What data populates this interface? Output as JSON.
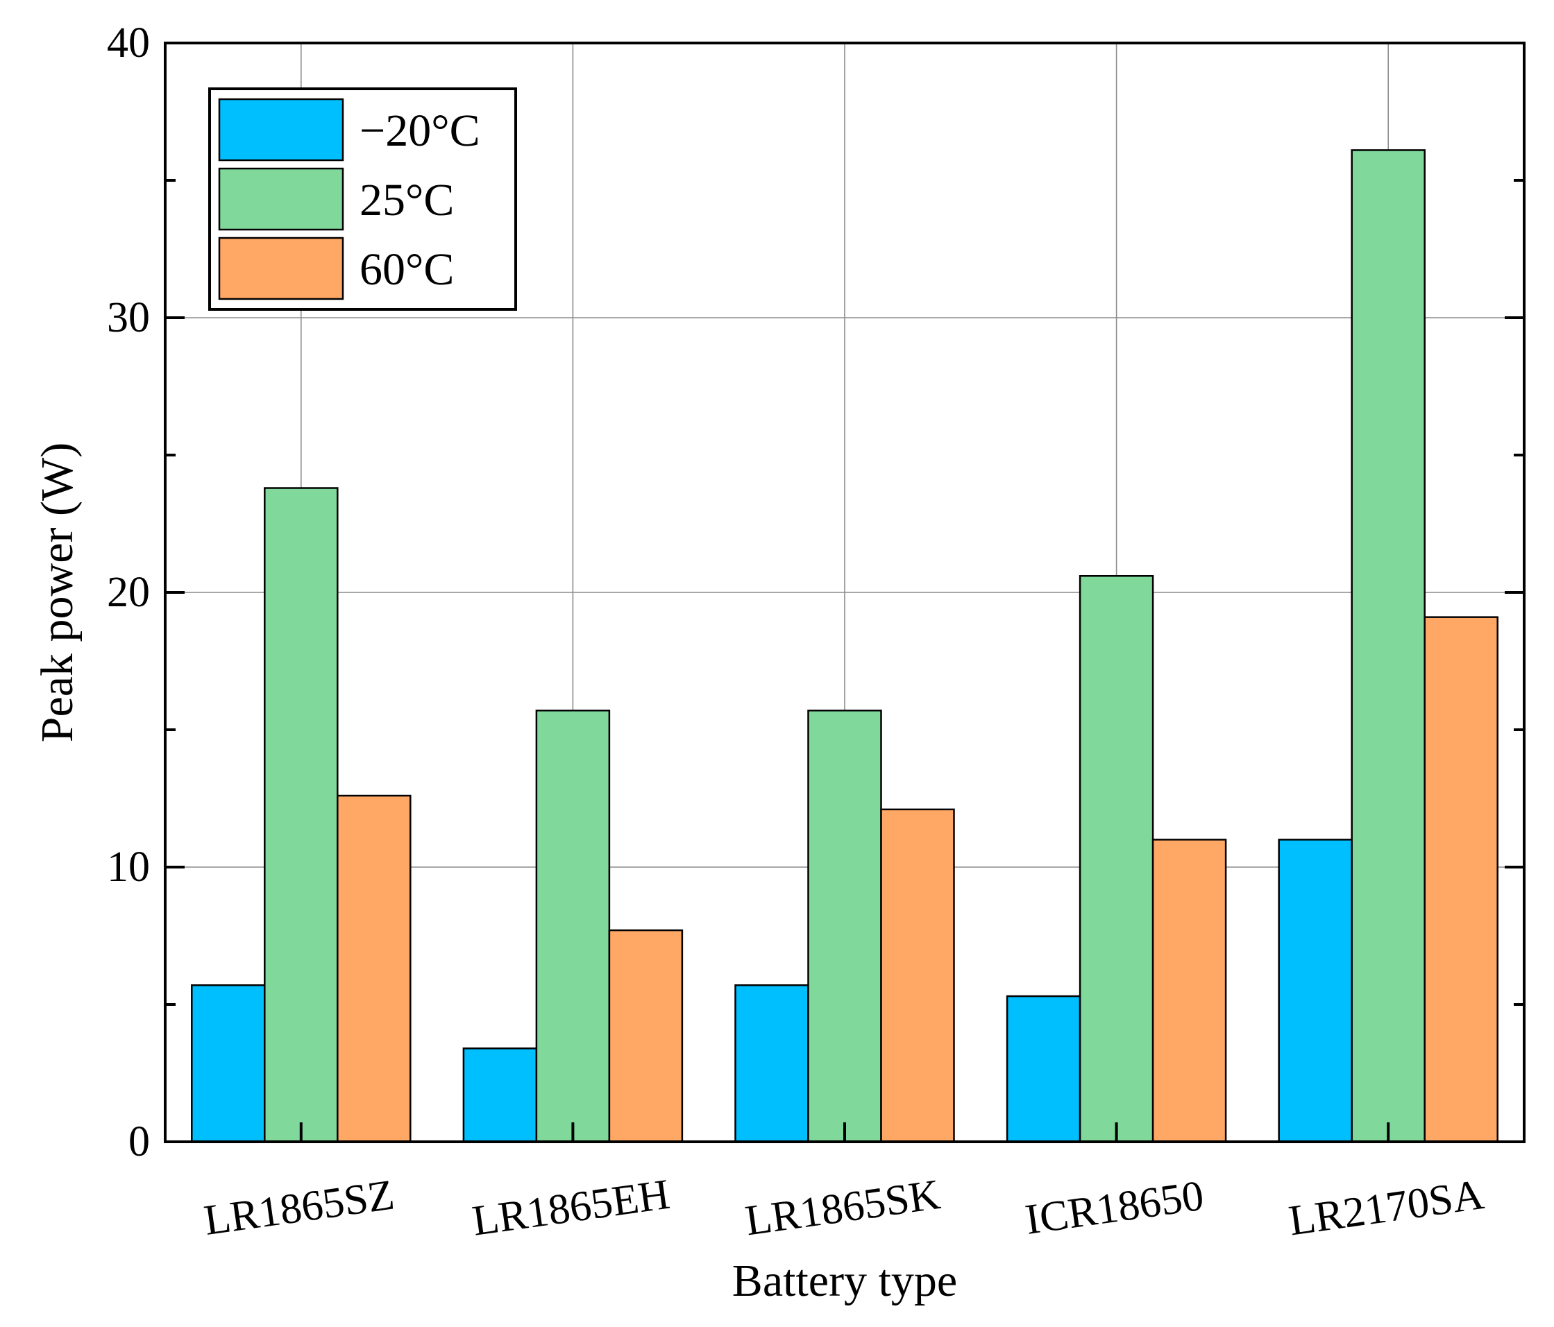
{
  "chart_data": {
    "type": "bar",
    "title": "",
    "xlabel": "Battery type",
    "ylabel": "Peak power (W)",
    "ylim": [
      0,
      40
    ],
    "yticks": [
      0,
      10,
      20,
      30,
      40
    ],
    "grid": true,
    "legend_position": "top-left",
    "categories": [
      "LR1865SZ",
      "LR1865EH",
      "LR1865SK",
      "ICR18650",
      "LR2170SA"
    ],
    "series": [
      {
        "name": "−20°C",
        "color": "#00bfff",
        "values": [
          5.7,
          3.4,
          5.7,
          5.3,
          11.0
        ]
      },
      {
        "name": "25°C",
        "color": "#80d89b",
        "values": [
          23.8,
          15.7,
          15.7,
          20.6,
          36.1
        ]
      },
      {
        "name": "60°C",
        "color": "#ffa764",
        "values": [
          12.6,
          7.7,
          12.1,
          11.0,
          19.1
        ]
      }
    ]
  }
}
